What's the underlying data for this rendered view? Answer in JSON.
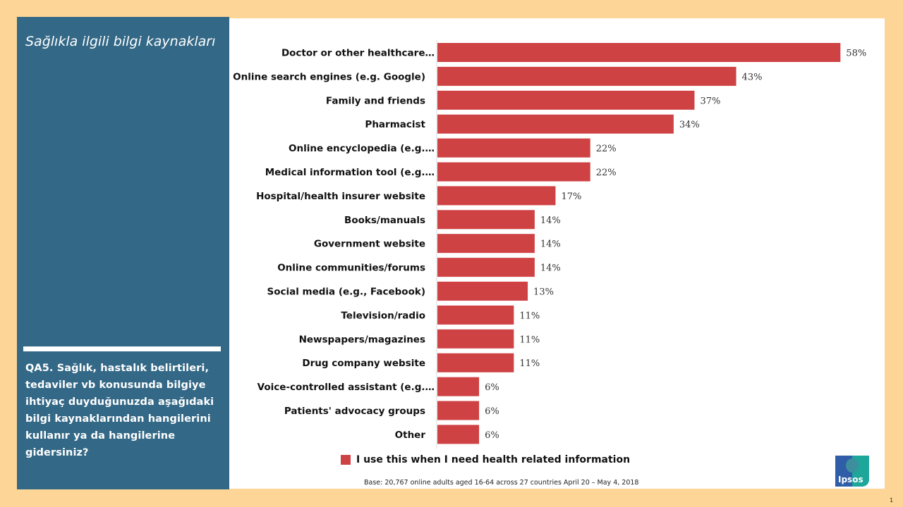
{
  "side_panel": {
    "title": "Sağlıkla ilgili bilgi kaynakları",
    "question": "QA5. Sağlık, hastalık belirtileri, tedaviler vb konusunda bilgiye ihtiyaç duyduğunuzda aşağıdaki bilgi kaynaklarından hangilerini kullanır ya da hangilerine gidersiniz?"
  },
  "colors": {
    "background": "#FDD597",
    "panel": "#336886",
    "bar": "#CF4244"
  },
  "chart_data": {
    "type": "bar",
    "orientation": "horizontal",
    "title": "Sağlıkla ilgili bilgi kaynakları",
    "xlabel": "",
    "ylabel": "",
    "xlim": [
      0,
      60
    ],
    "grid": false,
    "legend_position": "bottom",
    "categories": [
      "Doctor or other healthcare…",
      "Online search engines (e.g. Google)",
      "Family and friends",
      "Pharmacist",
      "Online encyclopedia (e.g.…",
      "Medical information tool (e.g.…",
      "Hospital/health insurer website",
      "Books/manuals",
      "Government website",
      "Online communities/forums",
      "Social media (e.g., Facebook)",
      "Television/radio",
      "Newspapers/magazines",
      "Drug company website",
      "Voice-controlled assistant (e.g.…",
      "Patients' advocacy groups",
      "Other"
    ],
    "series": [
      {
        "name": "I use this when I need health related information",
        "values": [
          58,
          43,
          37,
          34,
          22,
          22,
          17,
          14,
          14,
          14,
          13,
          11,
          11,
          11,
          6,
          6,
          6
        ],
        "labels": [
          "58%",
          "43%",
          "37%",
          "34%",
          "22%",
          "22%",
          "17%",
          "14%",
          "14%",
          "14%",
          "13%",
          "11%",
          "11%",
          "11%",
          "6%",
          "6%",
          "6%"
        ]
      }
    ]
  },
  "legend": {
    "label": "I use this when I need health related information"
  },
  "footer": {
    "base_note": "Base: 20,767 online adults aged 16-64 across 27 countries  April 20 – May 4, 2018",
    "logo_text": "Ipsos",
    "page_number": "1"
  }
}
